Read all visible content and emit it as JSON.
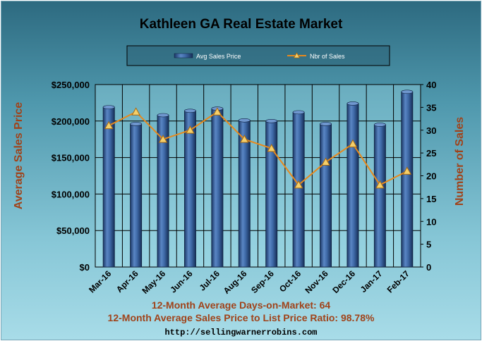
{
  "chart_data": {
    "type": "bar",
    "title": "Kathleen GA Real Estate Market",
    "categories": [
      "Mar-16",
      "Apr-16",
      "May-16",
      "Jun-16",
      "Jul-16",
      "Aug-16",
      "Sep-16",
      "Oct-16",
      "Nov-16",
      "Dec-16",
      "Jan-17",
      "Feb-17"
    ],
    "series": [
      {
        "name": "Avg Sales Price",
        "type": "bar",
        "axis": "left",
        "color": "#2a4e86",
        "values": [
          219000,
          196000,
          208000,
          214000,
          217000,
          201000,
          200000,
          212000,
          196000,
          224000,
          195000,
          240000
        ]
      },
      {
        "name": "Nbr of Sales",
        "type": "line",
        "axis": "right",
        "color": "#e8891c",
        "values": [
          31,
          34,
          28,
          30,
          34,
          28,
          26,
          18,
          23,
          27,
          18,
          21
        ]
      }
    ],
    "ylabel_left": "Average Sales Price",
    "ylabel_right": "Number of Sales",
    "ylim_left": [
      0,
      250000
    ],
    "ylim_right": [
      0,
      40
    ],
    "yticks_left": [
      "$0",
      "$50,000",
      "$100,000",
      "$150,000",
      "$200,000",
      "$250,000"
    ],
    "yticks_right": [
      "0",
      "5",
      "10",
      "15",
      "20",
      "25",
      "30",
      "35",
      "40"
    ],
    "grid": true,
    "legend_position": "top"
  },
  "footer": {
    "line1": "12-Month Average Days-on-Market: 64",
    "line2": "12-Month Average Sales Price to List Price Ratio: 98.78%",
    "url": "http://sellingwarnerrobins.com"
  }
}
